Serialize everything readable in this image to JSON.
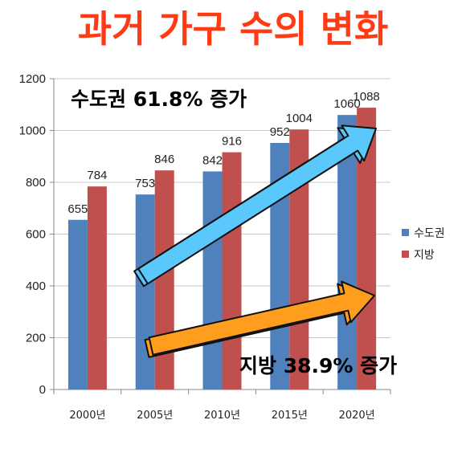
{
  "chart_data": {
    "type": "bar",
    "title": "과거 가구 수의 변화",
    "categories": [
      "2000년",
      "2005년",
      "2010년",
      "2015년",
      "2020년"
    ],
    "series": [
      {
        "name": "수도권",
        "values": [
          655,
          753,
          842,
          952,
          1060
        ],
        "color": "#4f81bd"
      },
      {
        "name": "지방",
        "values": [
          784,
          846,
          916,
          1004,
          1088
        ],
        "color": "#c0504d"
      }
    ],
    "ylim": [
      0,
      1200
    ],
    "yticks": [
      0,
      200,
      400,
      600,
      800,
      1000,
      1200
    ],
    "grid": true,
    "legend": "right",
    "annotations": [
      {
        "text": "수도권 61.8% 증가",
        "arrow_color": "#5ac8fa"
      },
      {
        "text": "지방 38.9% 증가",
        "arrow_color": "#ff9d1e"
      }
    ]
  }
}
